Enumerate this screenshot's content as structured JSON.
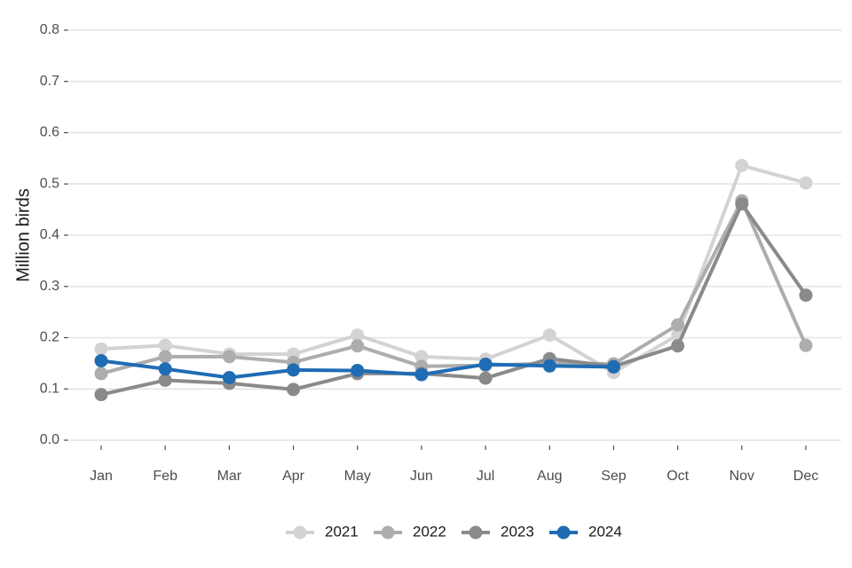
{
  "chart_data": {
    "type": "line",
    "ylabel": "Million birds",
    "xlabel": "",
    "categories": [
      "Jan",
      "Feb",
      "Mar",
      "Apr",
      "May",
      "Jun",
      "Jul",
      "Aug",
      "Sep",
      "Oct",
      "Nov",
      "Dec"
    ],
    "ylim": [
      0,
      0.8
    ],
    "yticks": [
      "0.0",
      "0.1",
      "0.2",
      "0.3",
      "0.4",
      "0.5",
      "0.6",
      "0.7",
      "0.8"
    ],
    "grid": "horizontal",
    "legend_position": "bottom",
    "series": [
      {
        "name": "2021",
        "color": "#d3d3d3",
        "values": [
          0.178,
          0.185,
          0.168,
          0.168,
          0.205,
          0.163,
          0.158,
          0.205,
          0.132,
          0.205,
          0.536,
          0.502
        ]
      },
      {
        "name": "2022",
        "color": "#adadad",
        "values": [
          0.13,
          0.163,
          0.163,
          0.152,
          0.184,
          0.144,
          0.146,
          0.15,
          0.149,
          0.225,
          0.467,
          0.185
        ]
      },
      {
        "name": "2023",
        "color": "#8a8a8a",
        "values": [
          0.089,
          0.117,
          0.111,
          0.099,
          0.13,
          0.13,
          0.121,
          0.159,
          0.144,
          0.184,
          0.461,
          0.283
        ]
      },
      {
        "name": "2024",
        "color": "#1f6cb4",
        "values": [
          0.155,
          0.139,
          0.122,
          0.137,
          0.136,
          0.128,
          0.148,
          0.145,
          0.143,
          null,
          null,
          null
        ]
      }
    ]
  }
}
